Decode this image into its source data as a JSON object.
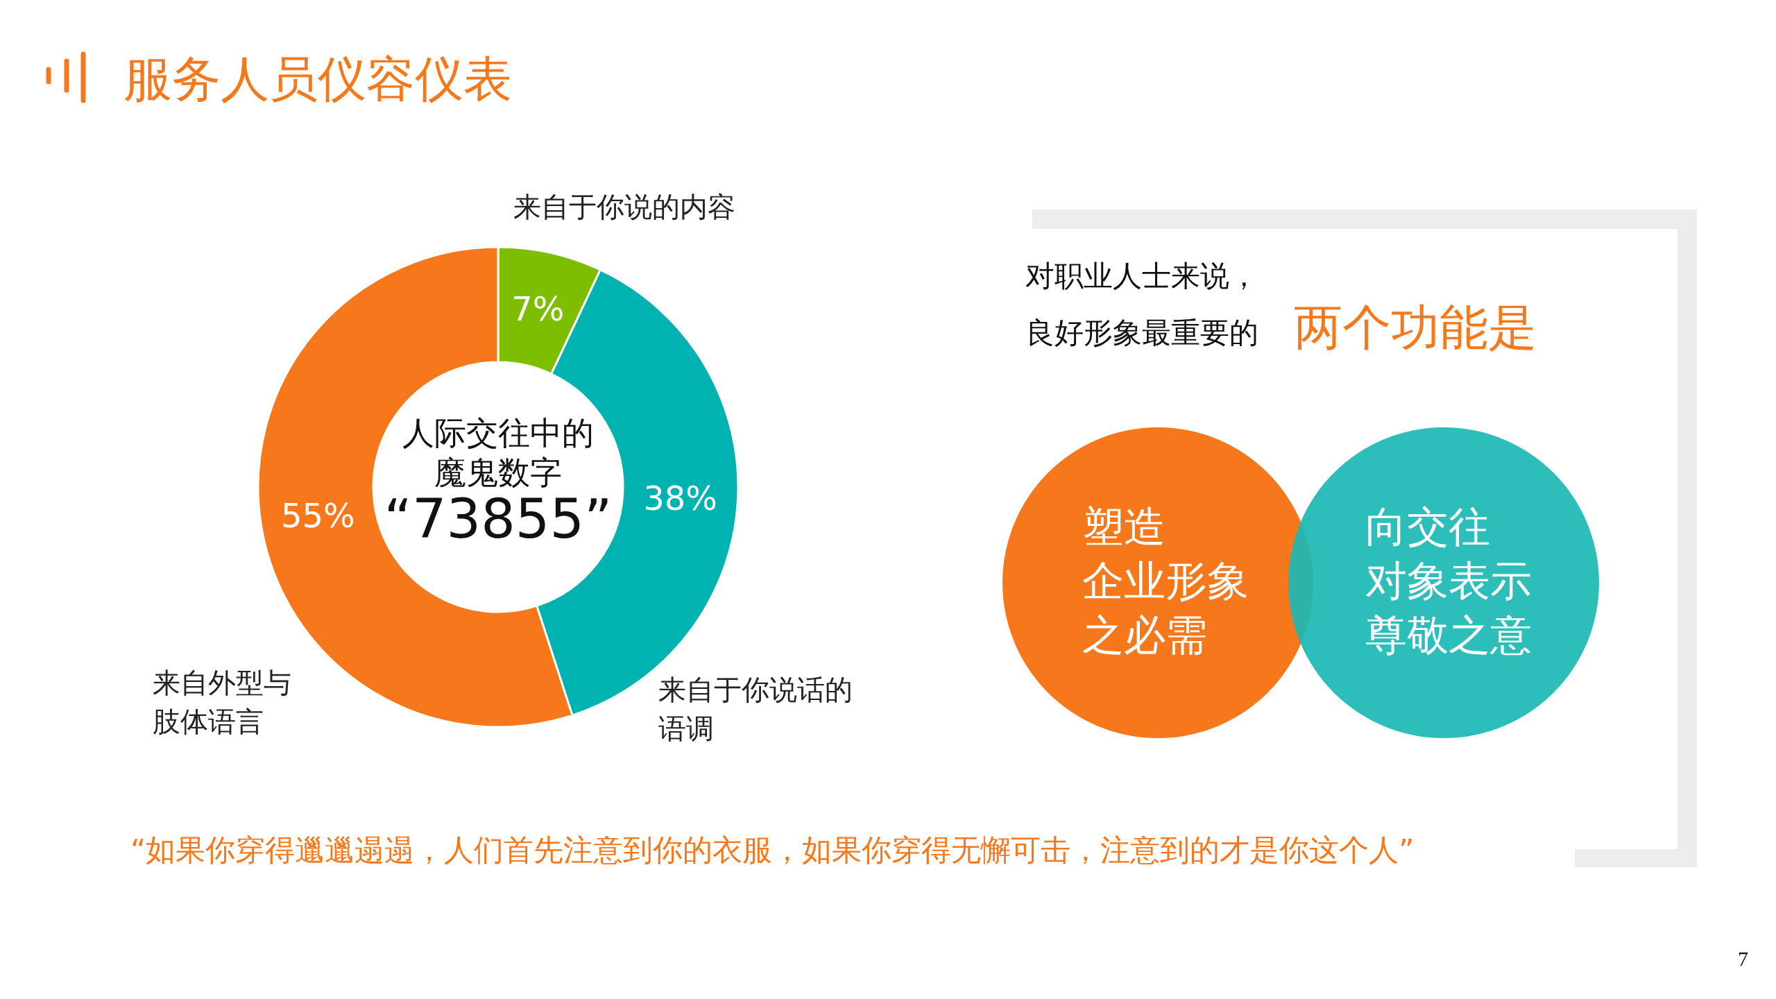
{
  "chart_data": {
    "type": "donut",
    "title": "服务人员仪容仪表",
    "categories": [
      "来自于你说的内容",
      "来自于你说话的语调",
      "来自外型与肢体语言"
    ],
    "values": [
      7,
      38,
      55
    ],
    "colors": [
      "#7dbe00",
      "#00b2b0",
      "#f7781a"
    ],
    "value_labels": [
      "7%",
      "38%",
      "55%"
    ],
    "annotations": [
      "人际交往中的",
      "魔鬼数字",
      "“73855”",
      "对职业人士来说，",
      "良好形象最重要的",
      "两个功能是",
      "塑造企业形象之必需",
      "向交往对象表示尊敬之意",
      "“如果你穿得邋邋遢遢，人们首先注意到你的衣服，如果你穿得无懈可击，注意到的才是你这个人”",
      "7"
    ]
  }
}
